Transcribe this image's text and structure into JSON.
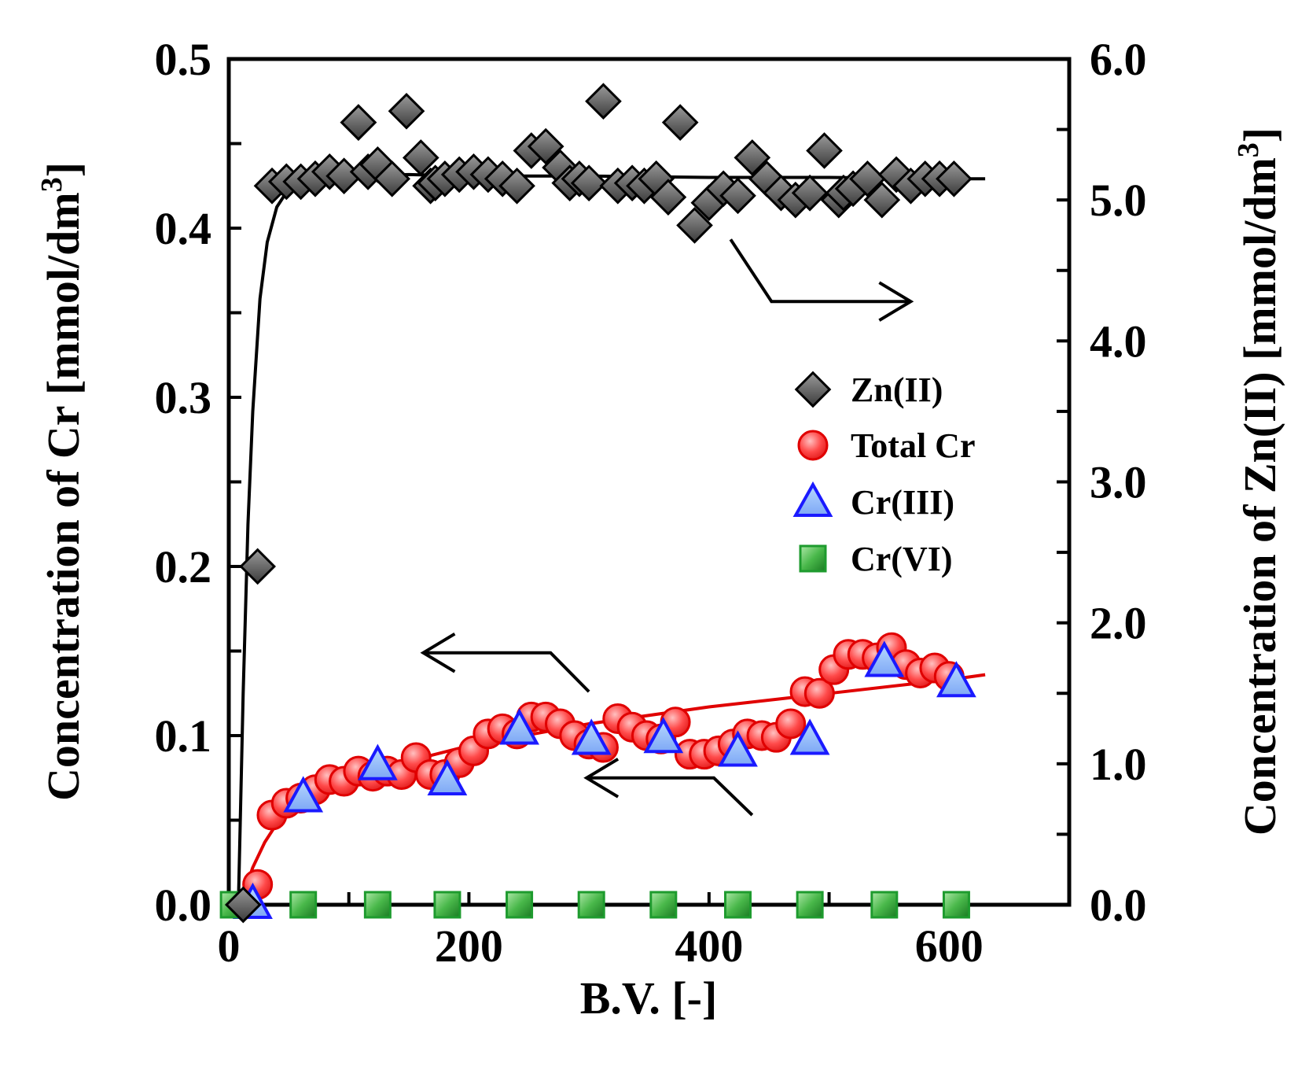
{
  "chart_data": {
    "type": "scatter",
    "title": "",
    "xlabel": "B.V. [-]",
    "ylabel_left": "Concentration of Cr [mmol/dm",
    "ylabel_left_sup": "3",
    "ylabel_left_end": "]",
    "ylabel_right": "Concentration of Zn(II) [mmol/dm",
    "ylabel_right_sup": "3",
    "ylabel_right_end": "]",
    "xlim": [
      0,
      700
    ],
    "ylim_left": [
      0,
      0.5
    ],
    "ylim_right": [
      0,
      6.0
    ],
    "x_ticks": [
      "0",
      "200",
      "400",
      "600"
    ],
    "x_tick_values": [
      0,
      200,
      400,
      600
    ],
    "y_left_ticks": [
      "0.0",
      "0.1",
      "0.2",
      "0.3",
      "0.4",
      "0.5"
    ],
    "y_left_tick_values": [
      0,
      0.1,
      0.2,
      0.3,
      0.4,
      0.5
    ],
    "y_right_ticks": [
      "0.0",
      "1.0",
      "2.0",
      "3.0",
      "4.0",
      "5.0",
      "6.0"
    ],
    "y_right_tick_values": [
      0,
      1,
      2,
      3,
      4,
      5,
      6
    ],
    "legend_position": "right-middle",
    "colors": {
      "zn": "#666666",
      "total_cr": "#ff3030",
      "cr3": "#1a1aff",
      "cr6": "#1e9b2e",
      "fit_cr": "#e00000",
      "fit_zn": "#000000"
    },
    "series": [
      {
        "name": "Zn(II)",
        "axis": "right",
        "marker": "diamond",
        "x": [
          12,
          24,
          36,
          48,
          60,
          72,
          84,
          96,
          108,
          108,
          116,
          124,
          136,
          148,
          160,
          168,
          172,
          180,
          192,
          204,
          216,
          228,
          240,
          252,
          264,
          276,
          284,
          292,
          300,
          312,
          324,
          336,
          346,
          356,
          366,
          376,
          388,
          400,
          412,
          424,
          436,
          448,
          460,
          472,
          484,
          496,
          508,
          512,
          520,
          532,
          544,
          556,
          568,
          580,
          592,
          604
        ],
        "y": [
          0,
          2.4,
          5.1,
          5.13,
          5.13,
          5.15,
          5.2,
          5.17,
          5.55,
          5.55,
          5.2,
          5.25,
          5.15,
          5.63,
          5.3,
          5.1,
          5.12,
          5.15,
          5.18,
          5.2,
          5.18,
          5.15,
          5.1,
          5.35,
          5.38,
          5.23,
          5.12,
          5.15,
          5.12,
          5.7,
          5.1,
          5.12,
          5.1,
          5.15,
          5.02,
          5.55,
          4.82,
          4.98,
          5.08,
          5.03,
          5.3,
          5.15,
          5.05,
          5.0,
          5.05,
          5.35,
          5.0,
          5.05,
          5.08,
          5.15,
          5.0,
          5.18,
          5.1,
          5.15,
          5.15,
          5.15
        ]
      },
      {
        "name": "Total Cr",
        "axis": "left",
        "marker": "circle",
        "x": [
          24,
          36,
          48,
          60,
          72,
          84,
          96,
          108,
          120,
          132,
          144,
          156,
          168,
          180,
          192,
          204,
          216,
          228,
          240,
          252,
          264,
          276,
          288,
          300,
          312,
          324,
          336,
          348,
          360,
          372,
          384,
          396,
          408,
          420,
          432,
          444,
          456,
          468,
          480,
          492,
          504,
          516,
          528,
          540,
          552,
          564,
          576,
          588,
          600
        ],
        "y": [
          0.012,
          0.053,
          0.06,
          0.063,
          0.068,
          0.074,
          0.073,
          0.079,
          0.076,
          0.079,
          0.077,
          0.087,
          0.077,
          0.077,
          0.084,
          0.091,
          0.101,
          0.104,
          0.101,
          0.111,
          0.111,
          0.107,
          0.1,
          0.095,
          0.093,
          0.11,
          0.105,
          0.1,
          0.098,
          0.108,
          0.089,
          0.089,
          0.091,
          0.095,
          0.101,
          0.1,
          0.099,
          0.107,
          0.126,
          0.125,
          0.139,
          0.148,
          0.148,
          0.146,
          0.152,
          0.142,
          0.137,
          0.14,
          0.135
        ]
      },
      {
        "name": "Cr(III)",
        "axis": "left",
        "marker": "triangle",
        "x": [
          20,
          62,
          124,
          182,
          242,
          302,
          362,
          424,
          484,
          546,
          606
        ],
        "y": [
          0.0,
          0.063,
          0.082,
          0.073,
          0.103,
          0.097,
          0.098,
          0.09,
          0.097,
          0.143,
          0.131
        ]
      },
      {
        "name": "Cr(VI)",
        "axis": "left",
        "marker": "square",
        "x": [
          4,
          62,
          124,
          182,
          242,
          302,
          362,
          424,
          484,
          546,
          606
        ],
        "y": [
          0,
          0,
          0,
          0,
          0,
          0,
          0,
          0,
          0,
          0,
          0
        ]
      }
    ],
    "fit_lines": [
      {
        "name": "Zn(II) fit",
        "axis": "right",
        "x": [
          8,
          12,
          16,
          20,
          26,
          32,
          40,
          50,
          60,
          80,
          100,
          150,
          200,
          300,
          400,
          500,
          600,
          630
        ],
        "y": [
          0.0,
          1.5,
          2.7,
          3.5,
          4.3,
          4.7,
          4.95,
          5.08,
          5.12,
          5.15,
          5.17,
          5.18,
          5.17,
          5.17,
          5.16,
          5.16,
          5.15,
          5.15
        ]
      },
      {
        "name": "Total Cr fit",
        "axis": "left",
        "x": [
          10,
          15,
          20,
          30,
          40,
          50,
          60,
          80,
          100,
          150,
          200,
          300,
          400,
          500,
          600,
          630
        ],
        "y": [
          0.0,
          0.012,
          0.022,
          0.037,
          0.048,
          0.057,
          0.063,
          0.07,
          0.075,
          0.085,
          0.094,
          0.107,
          0.117,
          0.125,
          0.133,
          0.136
        ]
      }
    ],
    "annotations": [
      {
        "name": "arrow-to-right-axis",
        "points": [
          [
            418,
            4.72
          ],
          [
            452,
            4.28
          ],
          [
            568,
            4.28
          ]
        ]
      },
      {
        "name": "arrow-to-left-axis-upper",
        "points": [
          [
            300,
            0.126
          ],
          [
            268,
            0.149
          ],
          [
            162,
            0.149
          ]
        ]
      },
      {
        "name": "arrow-to-left-axis-lower",
        "points": [
          [
            436,
            0.053
          ],
          [
            404,
            0.075
          ],
          [
            298,
            0.075
          ]
        ]
      }
    ]
  }
}
